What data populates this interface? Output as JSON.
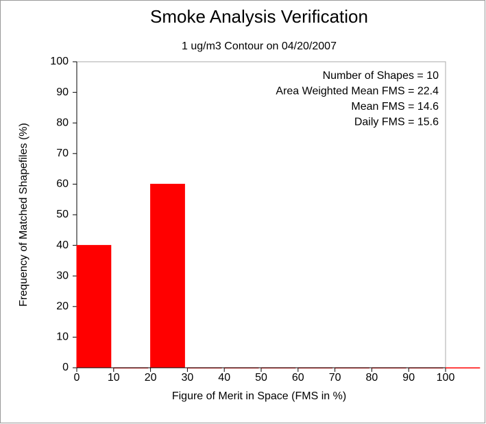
{
  "chart_data": {
    "type": "histogram",
    "title": "Smoke Analysis Verification",
    "subtitle": "1 ug/m3 Contour on 04/20/2007",
    "xlabel": "Figure of Merit in Space (FMS in %)",
    "ylabel": "Frequency of Matched Shapefiles (%)",
    "annotations": [
      "Number of Shapes = 10",
      "Area Weighted Mean FMS = 22.4",
      "Mean FMS = 14.6",
      "Daily FMS = 15.6"
    ],
    "bins": [
      0,
      10,
      20,
      30,
      40,
      50,
      60,
      70,
      80,
      90,
      100,
      110
    ],
    "values": [
      40,
      0,
      60,
      0,
      0,
      0,
      0,
      0,
      0,
      0,
      0
    ],
    "color": "#ff0000",
    "xlim": [
      0,
      100
    ],
    "ylim": [
      0,
      100
    ],
    "xticks": [
      0,
      10,
      20,
      30,
      40,
      50,
      60,
      70,
      80,
      90,
      100
    ],
    "yticks": [
      0,
      10,
      20,
      30,
      40,
      50,
      60,
      70,
      80,
      90,
      100
    ]
  }
}
